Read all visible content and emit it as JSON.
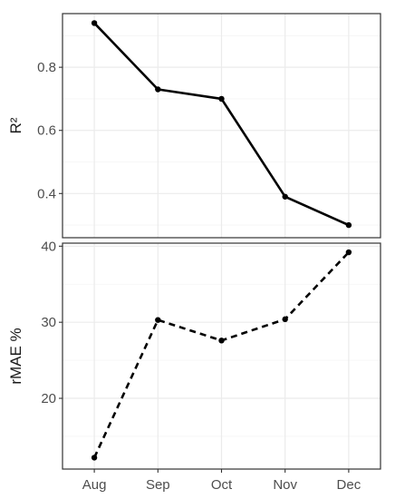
{
  "chart_data": [
    {
      "type": "line",
      "categories": [
        "Aug",
        "Sep",
        "Oct",
        "Nov",
        "Dec"
      ],
      "series": [
        {
          "values": [
            0.94,
            0.73,
            0.7,
            0.39,
            0.3
          ],
          "line_style": "solid",
          "color": "#000000"
        }
      ],
      "ylabel": "R²",
      "xlabel": "",
      "ylim": [
        0.26,
        0.97
      ],
      "yticks": [
        0.4,
        0.6,
        0.8
      ],
      "grid": true
    },
    {
      "type": "line",
      "categories": [
        "Aug",
        "Sep",
        "Oct",
        "Nov",
        "Dec"
      ],
      "series": [
        {
          "values": [
            12.2,
            30.3,
            27.6,
            30.4,
            39.2
          ],
          "line_style": "dashed",
          "color": "#000000"
        }
      ],
      "ylabel": "rMAE %",
      "xlabel": "",
      "ylim": [
        10.7,
        40.4
      ],
      "yticks": [
        20,
        30,
        40
      ],
      "grid": true
    }
  ],
  "colors": {
    "grid_major": "#ebebeb",
    "grid_minor": "#f4f4f4",
    "panel_border": "#333333",
    "text": "#4d4d4d"
  }
}
